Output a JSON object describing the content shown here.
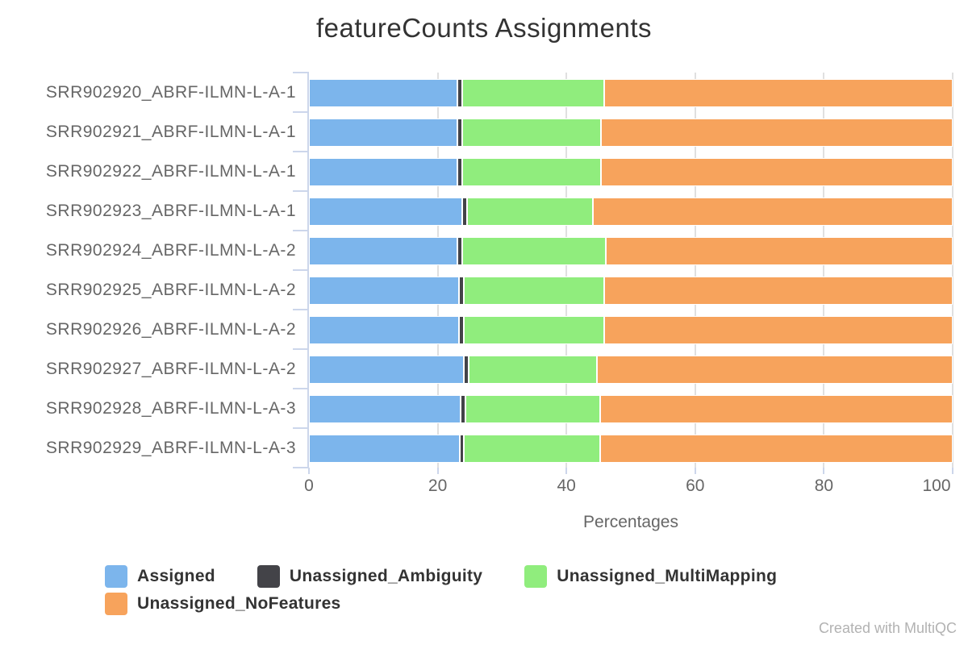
{
  "header": {
    "title": "featureCounts Assignments"
  },
  "footer": {
    "credit": "Created with MultiQC"
  },
  "chart_data": {
    "type": "bar",
    "orientation": "horizontal",
    "stacked": true,
    "title": "featureCounts Assignments",
    "xlabel": "Percentages",
    "ylabel": "",
    "xlim": [
      0,
      100
    ],
    "x_ticks": [
      0,
      20,
      40,
      60,
      80,
      100
    ],
    "grid": true,
    "legend_position": "bottom",
    "categories": [
      "SRR902920_ABRF-ILMN-L-A-1",
      "SRR902921_ABRF-ILMN-L-A-1",
      "SRR902922_ABRF-ILMN-L-A-1",
      "SRR902923_ABRF-ILMN-L-A-1",
      "SRR902924_ABRF-ILMN-L-A-2",
      "SRR902925_ABRF-ILMN-L-A-2",
      "SRR902926_ABRF-ILMN-L-A-2",
      "SRR902927_ABRF-ILMN-L-A-2",
      "SRR902928_ABRF-ILMN-L-A-3",
      "SRR902929_ABRF-ILMN-L-A-3"
    ],
    "series": [
      {
        "name": "Assigned",
        "color": "#7cb5ec",
        "values": [
          23.1,
          23.1,
          23.1,
          23.8,
          23.1,
          23.3,
          23.3,
          24.1,
          23.5,
          23.4
        ]
      },
      {
        "name": "Unassigned_Ambiguity",
        "color": "#434348",
        "values": [
          0.7,
          0.7,
          0.7,
          0.8,
          0.7,
          0.7,
          0.7,
          0.7,
          0.8,
          0.6
        ]
      },
      {
        "name": "Unassigned_MultiMapping",
        "color": "#90ed7d",
        "values": [
          22.1,
          21.6,
          21.6,
          19.5,
          22.3,
          21.9,
          21.9,
          19.9,
          21.0,
          21.3
        ]
      },
      {
        "name": "Unassigned_NoFeatures",
        "color": "#f7a35c",
        "values": [
          54.1,
          54.6,
          54.6,
          55.9,
          53.9,
          54.1,
          54.1,
          55.3,
          54.7,
          54.7
        ]
      }
    ]
  },
  "colors": {
    "background": "#ffffff",
    "axis_tick": "#ccd6eb",
    "gridline": "#e0e0e0",
    "axis_text": "#666666",
    "title_text": "#333333",
    "legend_text": "#333333",
    "credit_text": "#b2b2b2"
  }
}
